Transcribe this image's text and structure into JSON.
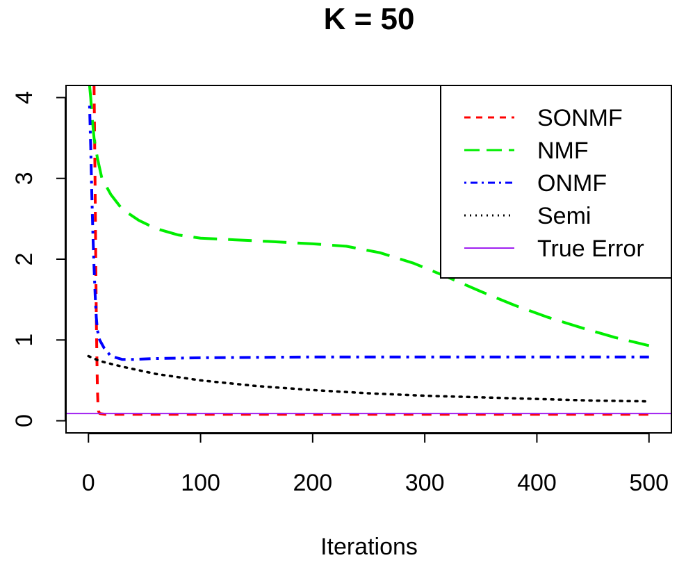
{
  "chart_data": {
    "type": "line",
    "title": "K = 50",
    "xlabel": "Iterations",
    "ylabel": "",
    "xlim": [
      -20,
      520
    ],
    "ylim": [
      -0.15,
      4.15
    ],
    "xticks": [
      0,
      100,
      200,
      300,
      400,
      500
    ],
    "yticks": [
      0,
      1,
      2,
      3,
      4
    ],
    "xtick_labels": [
      "0",
      "100",
      "200",
      "300",
      "400",
      "500"
    ],
    "ytick_labels": [
      "0",
      "1",
      "2",
      "3",
      "4"
    ],
    "grid": false,
    "legend_position": "top-right",
    "series": [
      {
        "name": "SONMF",
        "color": "#ff0000",
        "dash": "dashed",
        "points": [
          [
            5,
            4.15
          ],
          [
            5.5,
            3.5
          ],
          [
            6,
            2.8
          ],
          [
            6.5,
            2.0
          ],
          [
            7,
            1.3
          ],
          [
            7.5,
            0.8
          ],
          [
            8,
            0.4
          ],
          [
            8.5,
            0.2
          ],
          [
            9,
            0.12
          ],
          [
            10,
            0.09
          ],
          [
            15,
            0.08
          ],
          [
            100,
            0.08
          ],
          [
            200,
            0.08
          ],
          [
            300,
            0.08
          ],
          [
            400,
            0.08
          ],
          [
            500,
            0.08
          ]
        ]
      },
      {
        "name": "NMF",
        "color": "#00ee00",
        "dash": "longdash",
        "points": [
          [
            1,
            4.15
          ],
          [
            2,
            4.0
          ],
          [
            3,
            3.8
          ],
          [
            5,
            3.5
          ],
          [
            8,
            3.25
          ],
          [
            12,
            3.0
          ],
          [
            20,
            2.8
          ],
          [
            30,
            2.62
          ],
          [
            45,
            2.48
          ],
          [
            60,
            2.38
          ],
          [
            80,
            2.3
          ],
          [
            100,
            2.26
          ],
          [
            130,
            2.24
          ],
          [
            160,
            2.22
          ],
          [
            200,
            2.19
          ],
          [
            230,
            2.16
          ],
          [
            260,
            2.08
          ],
          [
            290,
            1.95
          ],
          [
            320,
            1.78
          ],
          [
            350,
            1.6
          ],
          [
            380,
            1.43
          ],
          [
            410,
            1.28
          ],
          [
            440,
            1.15
          ],
          [
            470,
            1.03
          ],
          [
            500,
            0.93
          ]
        ]
      },
      {
        "name": "ONMF",
        "color": "#0000ff",
        "dash": "dotdash",
        "points": [
          [
            1,
            3.9
          ],
          [
            2,
            3.4
          ],
          [
            3,
            2.8
          ],
          [
            4,
            2.3
          ],
          [
            5,
            1.9
          ],
          [
            6,
            1.55
          ],
          [
            7,
            1.28
          ],
          [
            8,
            1.12
          ],
          [
            10,
            1.0
          ],
          [
            14,
            0.9
          ],
          [
            20,
            0.8
          ],
          [
            30,
            0.76
          ],
          [
            40,
            0.76
          ],
          [
            60,
            0.77
          ],
          [
            100,
            0.78
          ],
          [
            200,
            0.79
          ],
          [
            300,
            0.79
          ],
          [
            400,
            0.79
          ],
          [
            500,
            0.79
          ]
        ]
      },
      {
        "name": "Semi",
        "color": "#000000",
        "dash": "dotted",
        "points": [
          [
            0,
            0.8
          ],
          [
            10,
            0.74
          ],
          [
            30,
            0.67
          ],
          [
            60,
            0.58
          ],
          [
            100,
            0.5
          ],
          [
            150,
            0.43
          ],
          [
            200,
            0.38
          ],
          [
            250,
            0.34
          ],
          [
            300,
            0.31
          ],
          [
            350,
            0.29
          ],
          [
            400,
            0.27
          ],
          [
            450,
            0.25
          ],
          [
            500,
            0.24
          ]
        ]
      },
      {
        "name": "True Error",
        "color": "#a020f0",
        "dash": "solid",
        "points": [
          [
            -20,
            0.09
          ],
          [
            520,
            0.09
          ]
        ]
      }
    ]
  }
}
